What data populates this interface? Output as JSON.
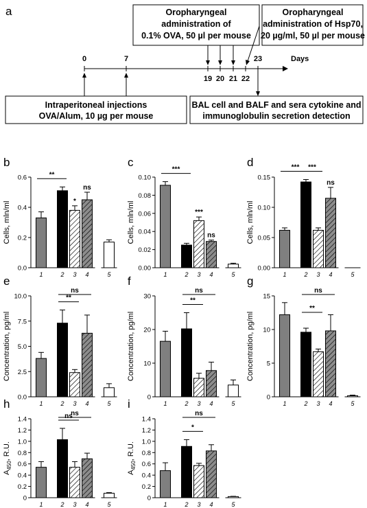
{
  "timeline": {
    "panel_label": "a",
    "days_label": "Days",
    "tick_labels": [
      "0",
      "7",
      "19",
      "20",
      "21",
      "22",
      "23"
    ],
    "box_ova": [
      "Oropharyngeal",
      "administration of",
      "0.1% OVA, 50 µl per mouse"
    ],
    "box_hsp": [
      "Oropharyngeal",
      "administration of Hsp70,",
      "20 µg/ml, 50 µl per mouse"
    ],
    "box_ip": [
      "Intraperitoneal injections",
      "OVA/Alum, 10 µg per mouse"
    ],
    "box_bal": [
      "BAL cell and BALF and sera cytokine and",
      "immunoglobulin secretion detection"
    ]
  },
  "chart_data": [
    {
      "id": "b",
      "type": "bar",
      "panel_label": "b",
      "categories": [
        "1",
        "2",
        "3",
        "4",
        "5"
      ],
      "values": [
        0.33,
        0.51,
        0.38,
        0.45,
        0.17
      ],
      "errors": [
        0.04,
        0.025,
        0.03,
        0.05,
        0.015
      ],
      "ylabel": "Cells, mln/ml",
      "ylim": [
        0,
        0.6
      ],
      "yticks": [
        "0.0",
        "0.2",
        "0.4",
        "0.6"
      ],
      "annotations": [
        {
          "text": "**",
          "from": 1,
          "to": 2
        },
        {
          "text": "*",
          "at": 3
        },
        {
          "text": "ns",
          "at": 4
        }
      ]
    },
    {
      "id": "c",
      "type": "bar",
      "panel_label": "c",
      "categories": [
        "1",
        "2",
        "3",
        "4",
        "5"
      ],
      "values": [
        0.091,
        0.025,
        0.052,
        0.029,
        0.004
      ],
      "errors": [
        0.004,
        0.002,
        0.004,
        0.0015,
        0.001
      ],
      "ylabel": "Cells, mln/ml",
      "ylim": [
        0,
        0.1
      ],
      "yticks": [
        "0.00",
        "0.02",
        "0.04",
        "0.06",
        "0.08",
        "0.10"
      ],
      "annotations": [
        {
          "text": "***",
          "from": 1,
          "to": 2
        },
        {
          "text": "***",
          "at": 3
        },
        {
          "text": "ns",
          "at": 4
        }
      ]
    },
    {
      "id": "d",
      "type": "bar",
      "panel_label": "d",
      "categories": [
        "1",
        "2",
        "3",
        "4",
        "5"
      ],
      "values": [
        0.062,
        0.142,
        0.062,
        0.115,
        0.0
      ],
      "errors": [
        0.004,
        0.004,
        0.004,
        0.018,
        0.0
      ],
      "ylabel": "Cells, mln/ml",
      "ylim": [
        0,
        0.15
      ],
      "yticks": [
        "0.00",
        "0.05",
        "0.10",
        "0.15"
      ],
      "annotations": [
        {
          "text": "***",
          "from": 1,
          "to": 2
        },
        {
          "text": "***",
          "from": 2,
          "to": 3
        },
        {
          "text": "ns",
          "at": 4
        }
      ]
    },
    {
      "id": "e",
      "type": "bar",
      "panel_label": "e",
      "categories": [
        "1",
        "2",
        "3",
        "4",
        "5"
      ],
      "values": [
        3.8,
        7.3,
        2.4,
        6.3,
        0.9
      ],
      "errors": [
        0.6,
        1.3,
        0.3,
        1.8,
        0.4
      ],
      "ylabel": "Concentration, pg/ml",
      "ylim": [
        0,
        10
      ],
      "yticks": [
        "0.0",
        "2.5",
        "5.0",
        "7.5",
        "10.0"
      ],
      "annotations": [
        {
          "text": "ns",
          "from": 2,
          "to": 4
        },
        {
          "text": "**",
          "from": 2,
          "to": 3
        }
      ]
    },
    {
      "id": "f",
      "type": "bar",
      "panel_label": "f",
      "categories": [
        "1",
        "2",
        "3",
        "4",
        "5"
      ],
      "values": [
        16.5,
        20.2,
        5.5,
        7.8,
        3.5
      ],
      "errors": [
        3.0,
        4.8,
        1.5,
        2.5,
        1.5
      ],
      "ylabel": "Concentration, pg/ml",
      "ylim": [
        0,
        30
      ],
      "yticks": [
        "0",
        "10",
        "20",
        "30"
      ],
      "annotations": [
        {
          "text": "ns",
          "from": 2,
          "to": 4
        },
        {
          "text": "**",
          "from": 2,
          "to": 3
        }
      ]
    },
    {
      "id": "g",
      "type": "bar",
      "panel_label": "g",
      "categories": [
        "1",
        "2",
        "3",
        "4",
        "5"
      ],
      "values": [
        12.2,
        9.6,
        6.7,
        9.8,
        0.15
      ],
      "errors": [
        1.8,
        0.6,
        0.4,
        2.4,
        0.1
      ],
      "ylabel": "Concentration, pg/ml",
      "ylim": [
        0,
        15
      ],
      "yticks": [
        "0",
        "5",
        "10",
        "15"
      ],
      "annotations": [
        {
          "text": "ns",
          "from": 2,
          "to": 4
        },
        {
          "text": "**",
          "from": 2,
          "to": 3
        }
      ]
    },
    {
      "id": "h",
      "type": "bar",
      "panel_label": "h",
      "categories": [
        "1",
        "2",
        "3",
        "4",
        "5"
      ],
      "values": [
        0.54,
        1.03,
        0.54,
        0.69,
        0.08
      ],
      "errors": [
        0.1,
        0.2,
        0.1,
        0.1,
        0.01
      ],
      "ylabel": "A450, R.U.",
      "ylabel_main": "A",
      "ylabel_sub": "450",
      "ylabel_rest": ", R.U.",
      "ylim": [
        0,
        1.4
      ],
      "yticks": [
        "0",
        "0.2",
        "0.4",
        "0.6",
        "0.8",
        "1.0",
        "1.2",
        "1.4"
      ],
      "annotations": [
        {
          "text": "ns",
          "from": 2,
          "to": 4
        },
        {
          "text": "ns",
          "from": 2,
          "to": 3
        }
      ]
    },
    {
      "id": "i",
      "type": "bar",
      "panel_label": "i",
      "categories": [
        "1",
        "2",
        "3",
        "4",
        "5"
      ],
      "values": [
        0.48,
        0.91,
        0.57,
        0.83,
        0.02
      ],
      "errors": [
        0.14,
        0.12,
        0.04,
        0.11,
        0.005
      ],
      "ylabel": "A450, R.U.",
      "ylabel_main": "A",
      "ylabel_sub": "450",
      "ylabel_rest": ", R.U.",
      "ylim": [
        0,
        1.4
      ],
      "yticks": [
        "0",
        "0.2",
        "0.4",
        "0.6",
        "0.8",
        "1.0",
        "1.2",
        "1.4"
      ],
      "annotations": [
        {
          "text": "ns",
          "from": 2,
          "to": 4
        },
        {
          "text": "*",
          "from": 2,
          "to": 3
        }
      ]
    }
  ],
  "bar_styles": [
    {
      "fill": "#7f7f7f",
      "pattern": "none"
    },
    {
      "fill": "#000000",
      "pattern": "none"
    },
    {
      "fill": "#ffffff",
      "pattern": "hatch"
    },
    {
      "fill": "#7f7f7f",
      "pattern": "hatch"
    },
    {
      "fill": "#ffffff",
      "pattern": "none"
    }
  ]
}
